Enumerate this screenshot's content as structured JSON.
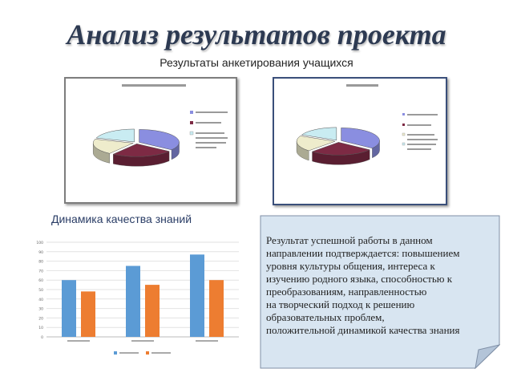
{
  "slide": {
    "title": "Анализ результатов проекта",
    "subtitle": "Результаты анкетирования учащихся",
    "dynamics_title": "Динамика качества знаний",
    "conclusion_lines": [
      "Результат успешной работы в данном",
      "направлении подтверждается: повышением",
      "уровня культуры общения, интереса к",
      "изучению родного языка, способностью к",
      "преобразованиям, направленностью",
      "на творческий подход к решению",
      "образовательных проблем,",
      "положительной динамикой качества знания"
    ]
  },
  "colors": {
    "title": "#2d3a52",
    "slice_blue": "#8a8ee0",
    "slice_maroon": "#7d2a44",
    "slice_cream": "#eeeccc",
    "slice_cyan": "#c9ecf2",
    "bar_blue": "#5b9bd5",
    "bar_orange": "#ed7d31",
    "note_fill": "#d8e5f1",
    "note_border": "#7f8fa6"
  },
  "chart_data": [
    {
      "type": "pie",
      "title": "",
      "slices": [
        {
          "label": "",
          "value": 35,
          "color": "#8a8ee0"
        },
        {
          "label": "",
          "value": 25,
          "color": "#7d2a44"
        },
        {
          "label": "",
          "value": 20,
          "color": "#eeeccc"
        },
        {
          "label": "",
          "value": 20,
          "color": "#c9ecf2"
        }
      ]
    },
    {
      "type": "pie",
      "title": "",
      "slices": [
        {
          "label": "",
          "value": 35,
          "color": "#8a8ee0"
        },
        {
          "label": "",
          "value": 27,
          "color": "#7d2a44"
        },
        {
          "label": "",
          "value": 20,
          "color": "#eeeccc"
        },
        {
          "label": "",
          "value": 18,
          "color": "#c9ecf2"
        }
      ]
    },
    {
      "type": "bar",
      "title": "",
      "categories": [
        "",
        "",
        ""
      ],
      "series": [
        {
          "name": "",
          "values": [
            60,
            75,
            87
          ],
          "color": "#5b9bd5"
        },
        {
          "name": "",
          "values": [
            48,
            55,
            60
          ],
          "color": "#ed7d31"
        }
      ],
      "ylim": [
        0,
        100
      ],
      "yticks": [
        0,
        10,
        20,
        30,
        40,
        50,
        60,
        70,
        80,
        90,
        100
      ],
      "grid": true,
      "legend": "bottom"
    }
  ]
}
